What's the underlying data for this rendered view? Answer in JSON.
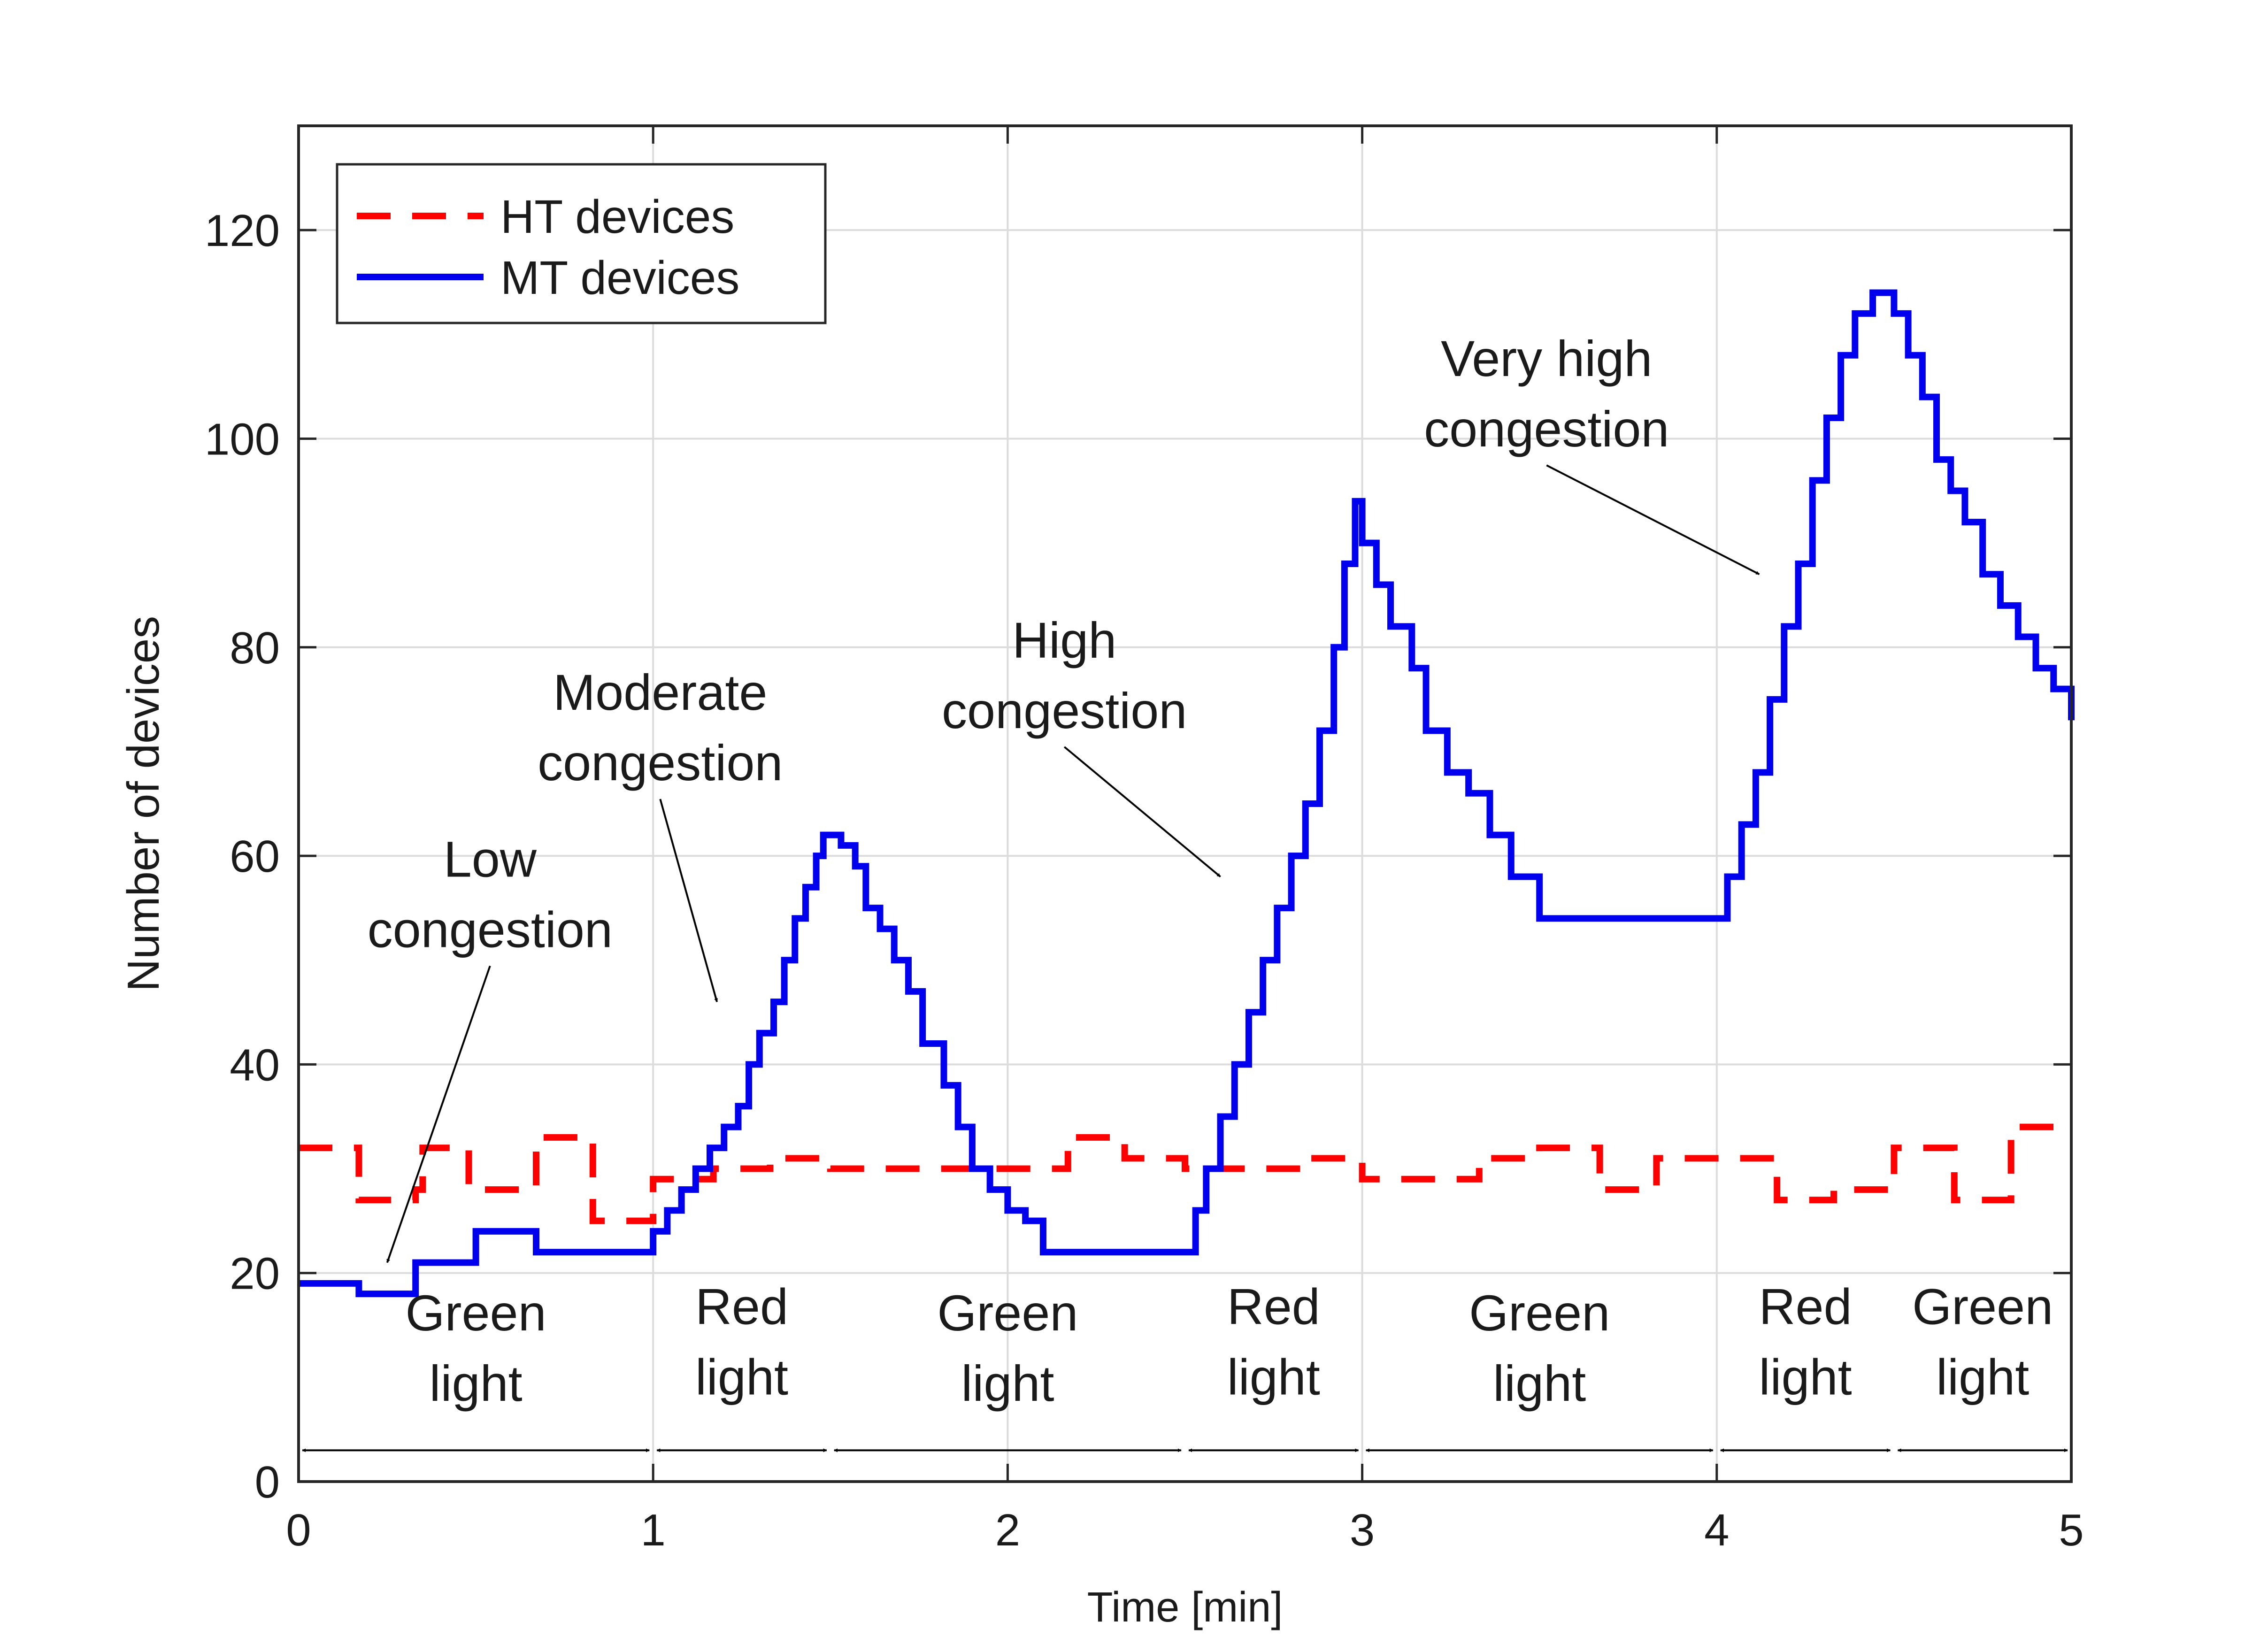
{
  "chart_data": {
    "type": "line",
    "xlabel": "Time [min]",
    "ylabel": "Number of devices",
    "xlim": [
      0,
      5
    ],
    "ylim": [
      0,
      130
    ],
    "xticks": [
      0,
      1,
      2,
      3,
      4,
      5
    ],
    "yticks": [
      0,
      20,
      40,
      60,
      80,
      100,
      120
    ],
    "xtick_labels": [
      "0",
      "1",
      "2",
      "3",
      "4",
      "5"
    ],
    "ytick_labels": [
      "0",
      "20",
      "40",
      "60",
      "80",
      "100",
      "120"
    ],
    "grid": true,
    "legend": {
      "position": "top-left"
    },
    "series": [
      {
        "name": "HT devices",
        "style": "dashed",
        "color": "#ff0000",
        "step": true,
        "points": [
          [
            0,
            32
          ],
          [
            0.17,
            27
          ],
          [
            0.33,
            28
          ],
          [
            0.35,
            32
          ],
          [
            0.48,
            28
          ],
          [
            0.67,
            33
          ],
          [
            0.83,
            25
          ],
          [
            1.0,
            29
          ],
          [
            1.17,
            30
          ],
          [
            1.33,
            31
          ],
          [
            1.5,
            30
          ],
          [
            2.17,
            33
          ],
          [
            2.33,
            31
          ],
          [
            2.5,
            30
          ],
          [
            2.83,
            31
          ],
          [
            3.0,
            29
          ],
          [
            3.33,
            31
          ],
          [
            3.5,
            32
          ],
          [
            3.67,
            28
          ],
          [
            3.83,
            31
          ],
          [
            4.17,
            27
          ],
          [
            4.33,
            28
          ],
          [
            4.5,
            32
          ],
          [
            4.67,
            27
          ],
          [
            4.83,
            34
          ],
          [
            5.0,
            34
          ]
        ]
      },
      {
        "name": "MT devices",
        "style": "solid",
        "color": "#0000ee",
        "step": true,
        "points": [
          [
            0,
            19
          ],
          [
            0.17,
            18
          ],
          [
            0.33,
            21
          ],
          [
            0.5,
            24
          ],
          [
            0.67,
            22
          ],
          [
            1.0,
            24
          ],
          [
            1.04,
            26
          ],
          [
            1.08,
            28
          ],
          [
            1.12,
            30
          ],
          [
            1.16,
            32
          ],
          [
            1.2,
            34
          ],
          [
            1.24,
            36
          ],
          [
            1.27,
            40
          ],
          [
            1.3,
            43
          ],
          [
            1.34,
            46
          ],
          [
            1.37,
            50
          ],
          [
            1.4,
            54
          ],
          [
            1.43,
            57
          ],
          [
            1.46,
            60
          ],
          [
            1.48,
            62
          ],
          [
            1.53,
            61
          ],
          [
            1.57,
            59
          ],
          [
            1.6,
            55
          ],
          [
            1.64,
            53
          ],
          [
            1.68,
            50
          ],
          [
            1.72,
            47
          ],
          [
            1.76,
            42
          ],
          [
            1.82,
            38
          ],
          [
            1.86,
            34
          ],
          [
            1.9,
            30
          ],
          [
            1.95,
            28
          ],
          [
            2.0,
            26
          ],
          [
            2.05,
            25
          ],
          [
            2.1,
            22
          ],
          [
            2.5,
            22
          ],
          [
            2.53,
            26
          ],
          [
            2.56,
            30
          ],
          [
            2.6,
            35
          ],
          [
            2.64,
            40
          ],
          [
            2.68,
            45
          ],
          [
            2.72,
            50
          ],
          [
            2.76,
            55
          ],
          [
            2.8,
            60
          ],
          [
            2.84,
            65
          ],
          [
            2.88,
            72
          ],
          [
            2.92,
            80
          ],
          [
            2.95,
            88
          ],
          [
            2.98,
            94
          ],
          [
            3.0,
            90
          ],
          [
            3.04,
            86
          ],
          [
            3.08,
            82
          ],
          [
            3.14,
            78
          ],
          [
            3.18,
            72
          ],
          [
            3.24,
            68
          ],
          [
            3.3,
            66
          ],
          [
            3.36,
            62
          ],
          [
            3.42,
            58
          ],
          [
            3.5,
            54
          ],
          [
            4.0,
            54
          ],
          [
            4.03,
            58
          ],
          [
            4.07,
            63
          ],
          [
            4.11,
            68
          ],
          [
            4.15,
            75
          ],
          [
            4.19,
            82
          ],
          [
            4.23,
            88
          ],
          [
            4.27,
            96
          ],
          [
            4.31,
            102
          ],
          [
            4.35,
            108
          ],
          [
            4.39,
            112
          ],
          [
            4.44,
            114
          ],
          [
            4.5,
            112
          ],
          [
            4.54,
            108
          ],
          [
            4.58,
            104
          ],
          [
            4.62,
            98
          ],
          [
            4.66,
            95
          ],
          [
            4.7,
            92
          ],
          [
            4.75,
            87
          ],
          [
            4.8,
            84
          ],
          [
            4.85,
            81
          ],
          [
            4.9,
            78
          ],
          [
            4.95,
            76
          ],
          [
            5.0,
            73
          ]
        ]
      }
    ],
    "annotations": [
      {
        "lines": [
          "Low",
          "congestion"
        ],
        "text_at": [
          0.54,
          58
        ],
        "arrow_to": [
          0.25,
          21
        ]
      },
      {
        "lines": [
          "Moderate",
          "congestion"
        ],
        "text_at": [
          1.02,
          74
        ],
        "arrow_to": [
          1.18,
          46
        ]
      },
      {
        "lines": [
          "High",
          "congestion"
        ],
        "text_at": [
          2.16,
          79
        ],
        "arrow_to": [
          2.6,
          58
        ]
      },
      {
        "lines": [
          "Very high",
          "congestion"
        ],
        "text_at": [
          3.52,
          106
        ],
        "arrow_to": [
          4.12,
          87
        ]
      }
    ],
    "phases": [
      {
        "lines": [
          "Green",
          "light"
        ],
        "start": 0,
        "end": 1
      },
      {
        "lines": [
          "Red",
          "light"
        ],
        "start": 1,
        "end": 1.5
      },
      {
        "lines": [
          "Green",
          "light"
        ],
        "start": 1.5,
        "end": 2.5
      },
      {
        "lines": [
          "Red",
          "light"
        ],
        "start": 2.5,
        "end": 3
      },
      {
        "lines": [
          "Green",
          "light"
        ],
        "start": 3,
        "end": 4
      },
      {
        "lines": [
          "Red",
          "light"
        ],
        "start": 4,
        "end": 4.5
      },
      {
        "lines": [
          "Green",
          "light"
        ],
        "start": 4.5,
        "end": 5
      }
    ]
  }
}
